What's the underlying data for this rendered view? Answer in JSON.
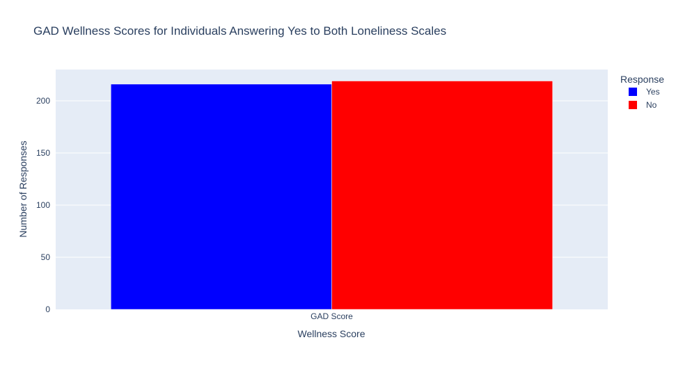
{
  "chart_data": {
    "type": "bar",
    "title": "GAD Wellness Scores for Individuals Answering Yes to Both Loneliness Scales",
    "xlabel": "Wellness Score",
    "ylabel": "Number of Responses",
    "categories": [
      "GAD Score"
    ],
    "series": [
      {
        "name": "Yes",
        "values": [
          216
        ],
        "color": "#0000ff"
      },
      {
        "name": "No",
        "values": [
          219
        ],
        "color": "#ff0000"
      }
    ],
    "ylim": [
      0,
      230
    ],
    "yticks": [
      0,
      50,
      100,
      150,
      200
    ],
    "grid": true,
    "legend": {
      "title": "Response",
      "placement": "top-right"
    },
    "plot_background": "#e5ecf6"
  }
}
